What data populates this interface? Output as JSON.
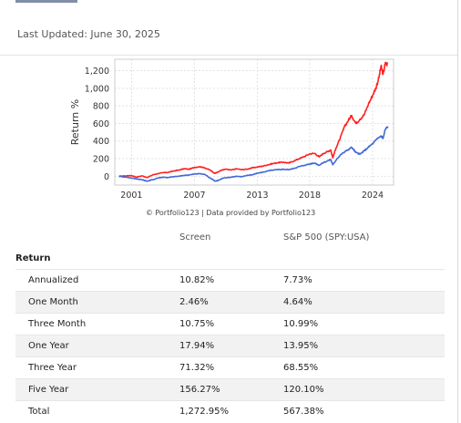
{
  "last_updated": "Last Updated: June 30, 2025",
  "credit": "© Portfolio123 | Data provided by Portfolio123",
  "chart_data": {
    "type": "line",
    "xlabel": "",
    "ylabel": "Return %",
    "x_ticks": [
      "2001",
      "2007",
      "2013",
      "2018",
      "2024"
    ],
    "y_ticks": [
      "0",
      "200",
      "400",
      "600",
      "800",
      "1,000",
      "1,200"
    ],
    "ylim": [
      -100,
      1330
    ],
    "xlim": [
      1999.4,
      2026.0
    ],
    "grid": true,
    "legend": "none",
    "series": [
      {
        "color": "#ff2020",
        "points": [
          [
            1999.8,
            0
          ],
          [
            2000.5,
            5
          ],
          [
            2001.0,
            8
          ],
          [
            2001.5,
            -10
          ],
          [
            2002.0,
            5
          ],
          [
            2002.5,
            -15
          ],
          [
            2003.0,
            15
          ],
          [
            2003.5,
            30
          ],
          [
            2004.0,
            40
          ],
          [
            2004.5,
            45
          ],
          [
            2005.0,
            60
          ],
          [
            2005.5,
            70
          ],
          [
            2006.0,
            85
          ],
          [
            2006.5,
            80
          ],
          [
            2007.0,
            100
          ],
          [
            2007.5,
            110
          ],
          [
            2008.0,
            95
          ],
          [
            2008.5,
            70
          ],
          [
            2008.9,
            35
          ],
          [
            2009.2,
            45
          ],
          [
            2009.6,
            70
          ],
          [
            2010.0,
            80
          ],
          [
            2010.5,
            70
          ],
          [
            2011.0,
            85
          ],
          [
            2011.5,
            75
          ],
          [
            2012.0,
            80
          ],
          [
            2012.5,
            95
          ],
          [
            2013.0,
            105
          ],
          [
            2013.5,
            115
          ],
          [
            2014.0,
            130
          ],
          [
            2014.5,
            145
          ],
          [
            2015.0,
            155
          ],
          [
            2015.5,
            160
          ],
          [
            2016.0,
            150
          ],
          [
            2016.5,
            175
          ],
          [
            2017.0,
            200
          ],
          [
            2017.5,
            225
          ],
          [
            2018.0,
            255
          ],
          [
            2018.5,
            260
          ],
          [
            2018.9,
            220
          ],
          [
            2019.3,
            260
          ],
          [
            2019.7,
            280
          ],
          [
            2020.0,
            300
          ],
          [
            2020.2,
            210
          ],
          [
            2020.5,
            320
          ],
          [
            2020.9,
            430
          ],
          [
            2021.3,
            560
          ],
          [
            2021.7,
            640
          ],
          [
            2022.0,
            690
          ],
          [
            2022.4,
            600
          ],
          [
            2022.8,
            650
          ],
          [
            2023.2,
            700
          ],
          [
            2023.6,
            820
          ],
          [
            2024.0,
            920
          ],
          [
            2024.3,
            1000
          ],
          [
            2024.6,
            1120
          ],
          [
            2024.8,
            1250
          ],
          [
            2025.0,
            1160
          ],
          [
            2025.2,
            1280
          ],
          [
            2025.45,
            1273
          ]
        ]
      },
      {
        "color": "#4169d8",
        "points": [
          [
            1999.8,
            0
          ],
          [
            2000.5,
            -10
          ],
          [
            2001.0,
            -20
          ],
          [
            2001.5,
            -30
          ],
          [
            2002.0,
            -40
          ],
          [
            2002.5,
            -55
          ],
          [
            2003.0,
            -40
          ],
          [
            2003.5,
            -20
          ],
          [
            2004.0,
            -10
          ],
          [
            2004.5,
            -15
          ],
          [
            2005.0,
            -5
          ],
          [
            2005.5,
            0
          ],
          [
            2006.0,
            10
          ],
          [
            2006.5,
            15
          ],
          [
            2007.0,
            25
          ],
          [
            2007.5,
            30
          ],
          [
            2008.0,
            20
          ],
          [
            2008.5,
            -20
          ],
          [
            2009.0,
            -55
          ],
          [
            2009.3,
            -45
          ],
          [
            2009.8,
            -20
          ],
          [
            2010.5,
            -10
          ],
          [
            2011.0,
            0
          ],
          [
            2011.5,
            -5
          ],
          [
            2012.0,
            10
          ],
          [
            2012.5,
            15
          ],
          [
            2013.0,
            35
          ],
          [
            2013.5,
            45
          ],
          [
            2014.0,
            60
          ],
          [
            2014.5,
            70
          ],
          [
            2015.0,
            75
          ],
          [
            2015.5,
            80
          ],
          [
            2016.0,
            75
          ],
          [
            2016.5,
            90
          ],
          [
            2017.0,
            110
          ],
          [
            2017.5,
            125
          ],
          [
            2018.0,
            140
          ],
          [
            2018.5,
            150
          ],
          [
            2018.9,
            125
          ],
          [
            2019.3,
            155
          ],
          [
            2019.8,
            180
          ],
          [
            2020.0,
            190
          ],
          [
            2020.2,
            130
          ],
          [
            2020.6,
            200
          ],
          [
            2021.0,
            250
          ],
          [
            2021.5,
            290
          ],
          [
            2022.0,
            330
          ],
          [
            2022.4,
            270
          ],
          [
            2022.8,
            250
          ],
          [
            2023.2,
            290
          ],
          [
            2023.6,
            330
          ],
          [
            2024.0,
            370
          ],
          [
            2024.4,
            420
          ],
          [
            2024.8,
            460
          ],
          [
            2025.0,
            430
          ],
          [
            2025.2,
            530
          ],
          [
            2025.45,
            567
          ]
        ]
      }
    ]
  },
  "table": {
    "col_screen": "Screen",
    "col_benchmark": "S&P 500 (SPY:USA)",
    "section": "Return",
    "rows": [
      {
        "label": "Annualized",
        "screen": "10.82%",
        "benchmark": "7.73%"
      },
      {
        "label": "One Month",
        "screen": "2.46%",
        "benchmark": "4.64%"
      },
      {
        "label": "Three Month",
        "screen": "10.75%",
        "benchmark": "10.99%"
      },
      {
        "label": "One Year",
        "screen": "17.94%",
        "benchmark": "13.95%"
      },
      {
        "label": "Three Year",
        "screen": "71.32%",
        "benchmark": "68.55%"
      },
      {
        "label": "Five Year",
        "screen": "156.27%",
        "benchmark": "120.10%"
      },
      {
        "label": "Total",
        "screen": "1,272.95%",
        "benchmark": "567.38%"
      }
    ]
  }
}
